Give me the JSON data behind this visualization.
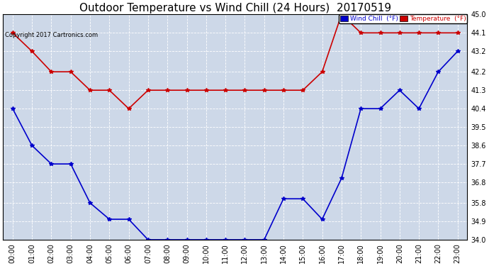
{
  "title": "Outdoor Temperature vs Wind Chill (24 Hours)  20170519",
  "copyright": "Copyright 2017 Cartronics.com",
  "ylim": [
    34.0,
    45.0
  ],
  "yticks": [
    34.0,
    34.9,
    35.8,
    36.8,
    37.7,
    38.6,
    39.5,
    40.4,
    41.3,
    42.2,
    43.2,
    44.1,
    45.0
  ],
  "x_labels": [
    "00:00",
    "01:00",
    "02:00",
    "03:00",
    "04:00",
    "05:00",
    "06:00",
    "07:00",
    "08:00",
    "09:00",
    "10:00",
    "11:00",
    "12:00",
    "13:00",
    "14:00",
    "15:00",
    "16:00",
    "17:00",
    "18:00",
    "19:00",
    "20:00",
    "21:00",
    "22:00",
    "23:00"
  ],
  "temperature": [
    44.1,
    43.2,
    42.2,
    42.2,
    41.3,
    41.3,
    40.4,
    41.3,
    41.3,
    41.3,
    41.3,
    41.3,
    41.3,
    41.3,
    41.3,
    41.3,
    42.2,
    45.0,
    44.1,
    44.1,
    44.1,
    44.1,
    44.1,
    44.1
  ],
  "wind_chill": [
    40.4,
    38.6,
    37.7,
    37.7,
    35.8,
    35.0,
    35.0,
    34.0,
    34.0,
    34.0,
    34.0,
    34.0,
    34.0,
    34.0,
    36.0,
    36.0,
    35.0,
    37.0,
    40.4,
    40.4,
    41.3,
    40.4,
    42.2,
    43.2
  ],
  "temp_color": "#cc0000",
  "wind_color": "#0000cc",
  "bg_color": "#ffffff",
  "plot_bg_color": "#cdd8e8",
  "grid_color": "#ffffff",
  "title_fontsize": 11,
  "copyright_fontsize": 6,
  "tick_fontsize": 7,
  "legend_wind_label": "Wind Chill  (°F)",
  "legend_temp_label": "Temperature  (°F)",
  "legend_wind_bg": "#0000cc",
  "legend_temp_bg": "#cc0000",
  "legend_text_color": "#ffffff"
}
